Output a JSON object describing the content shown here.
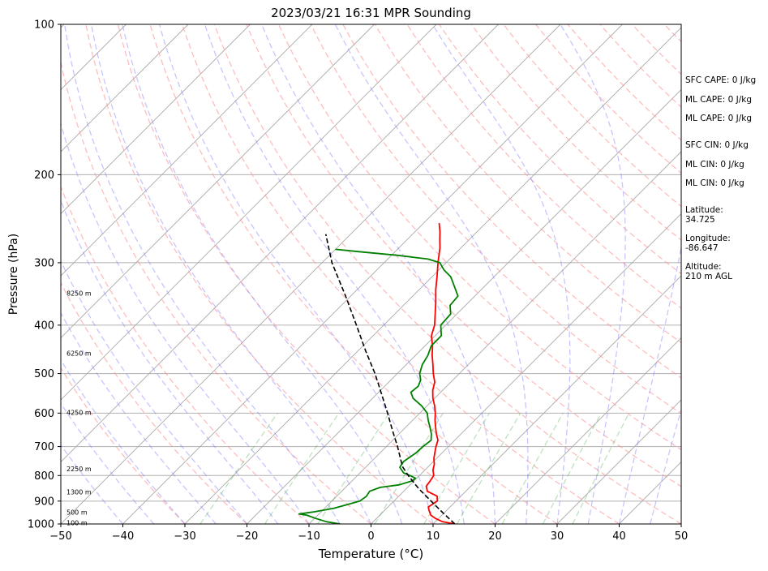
{
  "chart_data": {
    "type": "line",
    "title": "2023/03/21 16:31 MPR Sounding",
    "xlabel": "Temperature (°C)",
    "ylabel": "Pressure (hPa)",
    "xlim": [
      -50,
      50
    ],
    "ylim": [
      1000,
      100
    ],
    "y_scale": "log",
    "grid": true,
    "x_ticks": [
      "−50",
      "−40",
      "−30",
      "−20",
      "−10",
      "0",
      "10",
      "20",
      "30",
      "40",
      "50"
    ],
    "y_ticks": [
      {
        "p": 100,
        "label": "100"
      },
      {
        "p": 200,
        "label": "200"
      },
      {
        "p": 300,
        "label": "300"
      },
      {
        "p": 400,
        "label": "400"
      },
      {
        "p": 500,
        "label": "500"
      },
      {
        "p": 600,
        "label": "600"
      },
      {
        "p": 700,
        "label": "700"
      },
      {
        "p": 800,
        "label": "800"
      },
      {
        "p": 900,
        "label": "900"
      },
      {
        "p": 1000,
        "label": "1000"
      }
    ],
    "height_labels": [
      {
        "p": 345,
        "text": "8250 m"
      },
      {
        "p": 455,
        "text": "6250 m"
      },
      {
        "p": 598,
        "text": "4250 m"
      },
      {
        "p": 776,
        "text": "2250 m"
      },
      {
        "p": 862,
        "text": "1300 m"
      },
      {
        "p": 948,
        "text": "500 m"
      },
      {
        "p": 994,
        "text": "100 m"
      }
    ],
    "series": [
      {
        "color": "#ff0000",
        "points": [
          [
            1000,
            13.5
          ],
          [
            990,
            11.2
          ],
          [
            975,
            9.5
          ],
          [
            960,
            8.2
          ],
          [
            940,
            7.2
          ],
          [
            925,
            6.5
          ],
          [
            900,
            7.0
          ],
          [
            880,
            6.2
          ],
          [
            860,
            3.8
          ],
          [
            840,
            2.8
          ],
          [
            820,
            2.6
          ],
          [
            800,
            2.3
          ],
          [
            780,
            1.3
          ],
          [
            760,
            0.6
          ],
          [
            740,
            -0.4
          ],
          [
            720,
            -1.2
          ],
          [
            700,
            -2.0
          ],
          [
            680,
            -2.7
          ],
          [
            660,
            -4.0
          ],
          [
            640,
            -5.2
          ],
          [
            620,
            -6.4
          ],
          [
            600,
            -7.5
          ],
          [
            580,
            -8.8
          ],
          [
            560,
            -10.3
          ],
          [
            540,
            -11.6
          ],
          [
            520,
            -12.6
          ],
          [
            500,
            -14.2
          ],
          [
            480,
            -15.7
          ],
          [
            460,
            -17.3
          ],
          [
            440,
            -18.8
          ],
          [
            420,
            -20.6
          ],
          [
            400,
            -21.8
          ],
          [
            380,
            -23.5
          ],
          [
            360,
            -25.3
          ],
          [
            340,
            -27.3
          ],
          [
            320,
            -29.2
          ],
          [
            300,
            -31.3
          ],
          [
            280,
            -33.4
          ],
          [
            270,
            -34.7
          ],
          [
            260,
            -36.0
          ],
          [
            250,
            -37.5
          ]
        ]
      },
      {
        "color": "#008000",
        "points": [
          [
            1000,
            -5.0
          ],
          [
            990,
            -7.5
          ],
          [
            975,
            -9.8
          ],
          [
            960,
            -11.8
          ],
          [
            955,
            -13.2
          ],
          [
            945,
            -11.0
          ],
          [
            930,
            -8.5
          ],
          [
            915,
            -7.0
          ],
          [
            900,
            -5.5
          ],
          [
            880,
            -5.2
          ],
          [
            860,
            -5.5
          ],
          [
            845,
            -4.4
          ],
          [
            835,
            -1.8
          ],
          [
            820,
            -0.3
          ],
          [
            810,
            -0.2
          ],
          [
            800,
            -1.5
          ],
          [
            790,
            -3.0
          ],
          [
            770,
            -4.5
          ],
          [
            750,
            -4.8
          ],
          [
            735,
            -4.5
          ],
          [
            720,
            -4.2
          ],
          [
            700,
            -4.1
          ],
          [
            680,
            -3.8
          ],
          [
            660,
            -4.8
          ],
          [
            640,
            -6.1
          ],
          [
            620,
            -7.5
          ],
          [
            600,
            -8.8
          ],
          [
            580,
            -10.9
          ],
          [
            560,
            -13.5
          ],
          [
            545,
            -14.8
          ],
          [
            530,
            -14.6
          ],
          [
            515,
            -15.2
          ],
          [
            500,
            -16.4
          ],
          [
            480,
            -17.4
          ],
          [
            460,
            -18.0
          ],
          [
            440,
            -19.0
          ],
          [
            420,
            -19.0
          ],
          [
            400,
            -20.8
          ],
          [
            380,
            -21.0
          ],
          [
            365,
            -22.5
          ],
          [
            350,
            -22.7
          ],
          [
            335,
            -24.8
          ],
          [
            320,
            -27.0
          ],
          [
            310,
            -29.2
          ],
          [
            300,
            -31.0
          ],
          [
            295,
            -33.5
          ],
          [
            290,
            -39.0
          ],
          [
            285,
            -46.0
          ],
          [
            282,
            -50.0
          ]
        ]
      },
      {
        "color": "#000000",
        "points": [
          [
            1000,
            13.5
          ],
          [
            950,
            9.8
          ],
          [
            900,
            6.0
          ],
          [
            850,
            2.0
          ],
          [
            800,
            -1.8
          ],
          [
            770,
            -4.0
          ],
          [
            750,
            -5.2
          ],
          [
            700,
            -8.2
          ],
          [
            650,
            -11.6
          ],
          [
            600,
            -15.2
          ],
          [
            550,
            -19.2
          ],
          [
            500,
            -23.6
          ],
          [
            450,
            -28.8
          ],
          [
            400,
            -34.4
          ],
          [
            350,
            -40.8
          ],
          [
            300,
            -48.4
          ],
          [
            263,
            -54.0
          ]
        ]
      }
    ],
    "side_text": [
      "SFC CAPE: 0 J/kg",
      "ML CAPE: 0 J/kg",
      "ML CAPE: 0 J/kg",
      "SFC CIN: 0 J/kg",
      "ML CIN: 0 J/kg",
      "ML CIN: 0 J/kg",
      "Latitude:",
      "34.725",
      "Longitude:",
      "-86.647",
      "Altitude:",
      "210 m AGL"
    ]
  }
}
